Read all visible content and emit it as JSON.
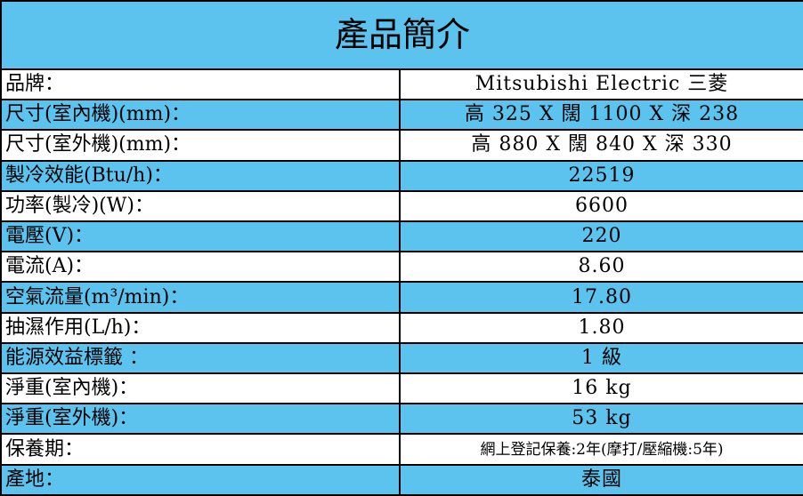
{
  "title": "產品簡介",
  "colors": {
    "accent": "#5BC3EE"
  },
  "rows": [
    {
      "label": "品牌：",
      "value": "Mitsubishi Electric 三菱"
    },
    {
      "label": "尺寸(室內機)(mm)：",
      "value": "高 325 X 闊 1100 X 深 238"
    },
    {
      "label": "尺寸(室外機)(mm)：",
      "value": "高 880 X 闊 840 X 深 330"
    },
    {
      "label": "製冷效能(Btu/h)：",
      "value": "22519"
    },
    {
      "label": "功率(製冷)(W)：",
      "value": "6600"
    },
    {
      "label": "電壓(V)：",
      "value": "220"
    },
    {
      "label": "電流(A)：",
      "value": "8.60"
    },
    {
      "label": "空氣流量(m³/min)：",
      "value": "17.80"
    },
    {
      "label": "抽濕作用(L/h)：",
      "value": "1.80"
    },
    {
      "label": "能源效益標籤 ：",
      "value": "1 級"
    },
    {
      "label": "淨重(室內機)：",
      "value": "16 kg"
    },
    {
      "label": "淨重(室外機)：",
      "value": "53 kg"
    },
    {
      "label": "保養期：",
      "value": "網上登記保養:2年(摩打/壓縮機:5年)"
    },
    {
      "label": "產地：",
      "value": "泰國"
    }
  ]
}
